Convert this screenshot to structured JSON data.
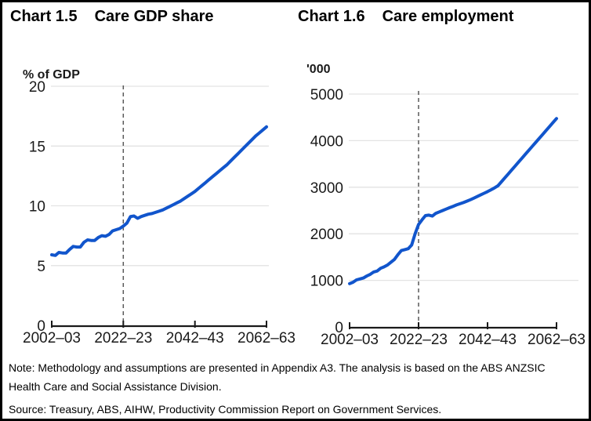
{
  "figure": {
    "charts": [
      {
        "label": "Chart 1.5",
        "title": "Care GDP share"
      },
      {
        "label": "Chart 1.6",
        "title": "Care employment"
      }
    ],
    "note": "Note: Methodology and assumptions are presented in Appendix A3. The analysis is based on the ABS ANZSIC Health Care and Social Assistance Division.",
    "source": "Source: Treasury, ABS, AIHW, Productivity Commission Report on Government Services."
  },
  "colors": {
    "line": "#1155CC",
    "grid": "#e3e3e3",
    "axis": "#1a1a1a",
    "dashed_line": "#595959",
    "text": "#000000",
    "background": "#ffffff",
    "border": "#000000"
  },
  "chart_data": [
    {
      "type": "line",
      "title": "Chart 1.5  Care GDP share",
      "ylabel": "% of GDP",
      "xlabel": "",
      "ylim": [
        0,
        20
      ],
      "yticks": [
        0,
        5,
        10,
        15,
        20
      ],
      "xlim": [
        2002,
        2062
      ],
      "xticks": [
        {
          "x": 2002,
          "label": "2002–03"
        },
        {
          "x": 2022,
          "label": "2022–23"
        },
        {
          "x": 2042,
          "label": "2042–43"
        },
        {
          "x": 2062,
          "label": "2062–63"
        }
      ],
      "projection_divider_x": 2022,
      "grid": "horizontal",
      "legend": "none",
      "series": [
        {
          "name": "Care GDP share",
          "x_start": 2002,
          "x_step": 1,
          "values": [
            5.9,
            5.85,
            6.1,
            6.05,
            6.05,
            6.35,
            6.6,
            6.55,
            6.55,
            6.95,
            7.15,
            7.1,
            7.1,
            7.35,
            7.5,
            7.45,
            7.6,
            7.9,
            8.0,
            8.1,
            8.3,
            8.55,
            9.1,
            9.15,
            8.95,
            9.1,
            9.2,
            9.3,
            9.35,
            9.45,
            9.55,
            9.65,
            9.8,
            9.95,
            10.1,
            10.25,
            10.4,
            10.6,
            10.8,
            11.0,
            11.2,
            11.45,
            11.7,
            11.95,
            12.2,
            12.45,
            12.7,
            12.95,
            13.2,
            13.45,
            13.75,
            14.05,
            14.35,
            14.65,
            14.95,
            15.25,
            15.55,
            15.85,
            16.1,
            16.35,
            16.6
          ]
        }
      ]
    },
    {
      "type": "line",
      "title": "Chart 1.6  Care employment",
      "ylabel": "'000",
      "xlabel": "",
      "ylim": [
        0,
        5000
      ],
      "yticks": [
        0,
        1000,
        2000,
        3000,
        4000,
        5000
      ],
      "xlim": [
        2002,
        2062
      ],
      "xticks": [
        {
          "x": 2002,
          "label": "2002–03"
        },
        {
          "x": 2022,
          "label": "2022–23"
        },
        {
          "x": 2042,
          "label": "2042–43"
        },
        {
          "x": 2062,
          "label": "2062–63"
        }
      ],
      "projection_divider_x": 2022,
      "grid": "horizontal",
      "legend": "none",
      "series": [
        {
          "name": "Care employment",
          "x_start": 2002,
          "x_step": 1,
          "values": [
            930,
            960,
            1010,
            1030,
            1050,
            1095,
            1130,
            1180,
            1200,
            1260,
            1290,
            1330,
            1390,
            1450,
            1550,
            1640,
            1660,
            1680,
            1760,
            2000,
            2200,
            2300,
            2390,
            2400,
            2380,
            2440,
            2470,
            2500,
            2530,
            2560,
            2590,
            2620,
            2645,
            2670,
            2700,
            2730,
            2765,
            2800,
            2835,
            2870,
            2905,
            2945,
            2985,
            3030,
            3115,
            3200,
            3285,
            3370,
            3455,
            3540,
            3625,
            3710,
            3795,
            3880,
            3965,
            4050,
            4135,
            4220,
            4305,
            4390,
            4475
          ]
        }
      ]
    }
  ]
}
